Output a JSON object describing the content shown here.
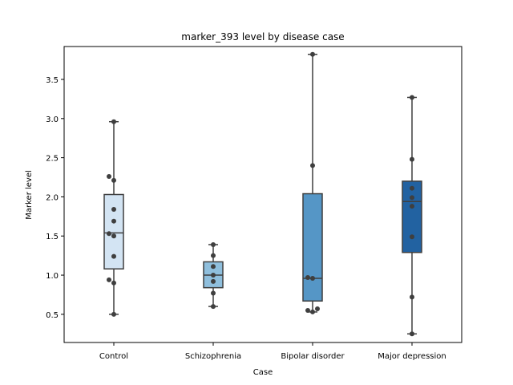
{
  "chart_data": {
    "type": "box",
    "title": "marker_393 level by disease case",
    "xlabel": "Case",
    "ylabel": "Marker level",
    "ylim": [
      0.14,
      3.92
    ],
    "yticks": [
      0.5,
      1.0,
      1.5,
      2.0,
      2.5,
      3.0,
      3.5
    ],
    "ytick_labels": [
      "0.5",
      "1.0",
      "1.5",
      "2.0",
      "2.5",
      "3.0",
      "3.5"
    ],
    "grid": false,
    "legend": "none",
    "categories": [
      "Control",
      "Schizophrenia",
      "Bipolar disorder",
      "Major depression"
    ],
    "boxes": [
      {
        "category": "Control",
        "color": "#d3e4f3",
        "whisker_low": 0.5,
        "q1": 1.08,
        "median": 1.54,
        "q3": 2.03,
        "whisker_high": 2.96,
        "points": [
          2.96,
          2.26,
          2.21,
          1.84,
          1.69,
          1.53,
          1.5,
          1.24,
          0.94,
          0.9,
          0.5
        ]
      },
      {
        "category": "Schizophrenia",
        "color": "#8fbfdd",
        "whisker_low": 0.6,
        "q1": 0.84,
        "median": 1.0,
        "q3": 1.17,
        "whisker_high": 1.39,
        "points": [
          1.39,
          1.25,
          1.11,
          1.0,
          0.92,
          0.77,
          0.6
        ]
      },
      {
        "category": "Bipolar disorder",
        "color": "#5596c6",
        "whisker_low": 0.53,
        "q1": 0.67,
        "median": 0.96,
        "q3": 2.04,
        "whisker_high": 3.82,
        "points": [
          3.82,
          2.4,
          0.97,
          0.96,
          0.57,
          0.55,
          0.53
        ]
      },
      {
        "category": "Major depression",
        "color": "#2262a1",
        "whisker_low": 0.25,
        "q1": 1.29,
        "median": 1.94,
        "q3": 2.2,
        "whisker_high": 3.27,
        "points": [
          3.27,
          2.48,
          2.11,
          1.99,
          1.88,
          1.49,
          0.72,
          0.25
        ]
      }
    ]
  }
}
